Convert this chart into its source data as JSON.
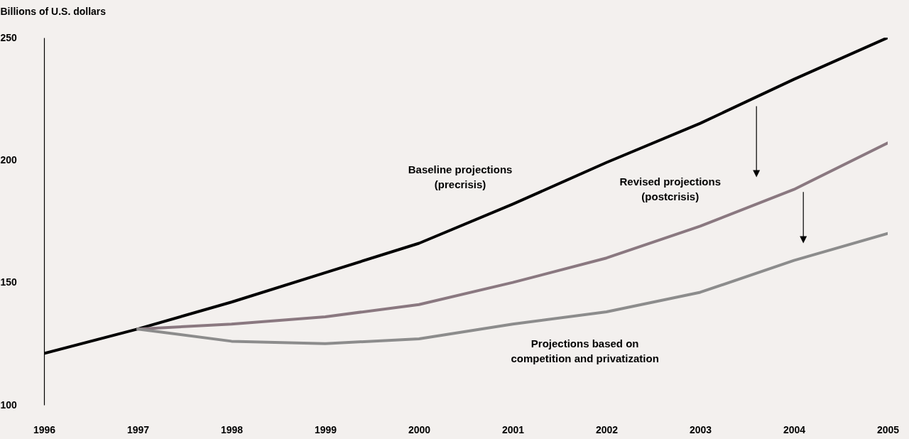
{
  "chart_data": {
    "type": "line",
    "ylabel": "Billions of U.S. dollars",
    "x": [
      1996,
      1997,
      1998,
      1999,
      2000,
      2001,
      2002,
      2003,
      2004,
      2005
    ],
    "xlim": [
      1996,
      2005
    ],
    "xticks": [
      1996,
      1997,
      1998,
      1999,
      2000,
      2001,
      2002,
      2003,
      2004,
      2005
    ],
    "ylim": [
      100,
      250
    ],
    "yticks": [
      100,
      150,
      200,
      250
    ],
    "grid": false,
    "series": [
      {
        "name": "Baseline projections\n(precrisis)",
        "color": "#000000",
        "values": [
          121,
          131,
          142,
          154,
          166,
          182,
          199,
          215,
          233,
          250
        ]
      },
      {
        "name": "Revised projections\n(postcrisis)",
        "color": "#8a7880",
        "values": [
          null,
          131,
          133,
          136,
          141,
          150,
          160,
          173,
          188,
          207
        ]
      },
      {
        "name": "Projections based on\ncompetition and privatization",
        "color": "#8c8c8c",
        "values": [
          null,
          131,
          126,
          125,
          127,
          133,
          138,
          146,
          159,
          170
        ]
      }
    ]
  }
}
